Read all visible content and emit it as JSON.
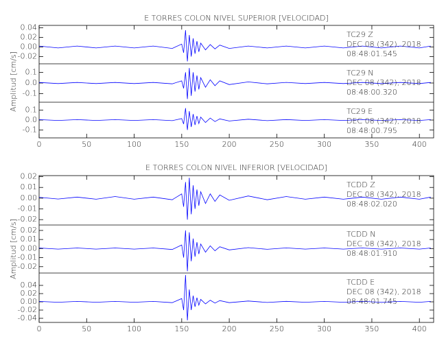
{
  "chart_data": [
    {
      "type": "line",
      "title": "E TORRES COLON NIVEL SUPERIOR [VELOCIDAD]",
      "y_label": "Amplitud [cm/s]",
      "color": "#0000ff",
      "xlim": [
        0,
        415
      ],
      "xticks": [
        0,
        50,
        100,
        150,
        200,
        250,
        300,
        350,
        400
      ],
      "x": [
        0,
        20,
        40,
        60,
        80,
        100,
        120,
        140,
        150,
        152,
        154,
        156,
        158,
        160,
        162,
        164,
        166,
        168,
        170,
        175,
        180,
        185,
        190,
        200,
        220,
        240,
        260,
        280,
        300,
        320,
        340,
        360,
        380,
        400,
        412
      ],
      "panels": [
        {
          "ylim": [
            -0.035,
            0.045
          ],
          "yticks": [
            {
              "value": 0.04,
              "label": "0.04"
            },
            {
              "value": 0.02,
              "label": "0.02"
            },
            {
              "value": 0,
              "label": "0.00"
            },
            {
              "value": -0.02,
              "label": "-0.02"
            }
          ],
          "labels": [
            "TC29   Z",
            "DEC 08 (342), 2018",
            "08:48:01.545"
          ],
          "values": [
            0.002,
            -0.002,
            0.002,
            -0.002,
            0.002,
            -0.002,
            0.002,
            -0.003,
            0.006,
            -0.012,
            0.035,
            -0.03,
            0.025,
            -0.02,
            0.018,
            -0.014,
            0.012,
            -0.01,
            0.008,
            -0.006,
            0.005,
            -0.004,
            0.004,
            -0.003,
            0.002,
            -0.002,
            0.002,
            -0.002,
            0.002,
            -0.002,
            0.002,
            -0.002,
            0.002,
            -0.002,
            0.002
          ]
        },
        {
          "ylim": [
            -0.18,
            0.18
          ],
          "yticks": [
            {
              "value": 0.1,
              "label": "0.1"
            },
            {
              "value": 0,
              "label": "0.0"
            },
            {
              "value": -0.1,
              "label": "-0.1"
            }
          ],
          "labels": [
            "TC29   N",
            "DEC 08 (342), 2018",
            "08:48:00.320"
          ],
          "values": [
            0.005,
            -0.005,
            0.005,
            -0.005,
            0.005,
            -0.005,
            0.005,
            -0.008,
            0.02,
            -0.05,
            0.1,
            -0.15,
            0.14,
            -0.12,
            0.1,
            -0.08,
            0.07,
            -0.06,
            0.05,
            -0.04,
            0.03,
            -0.025,
            0.02,
            -0.015,
            0.01,
            -0.008,
            0.006,
            -0.005,
            0.005,
            -0.005,
            0.005,
            -0.005,
            0.005,
            -0.005,
            0.005
          ]
        },
        {
          "ylim": [
            -0.18,
            0.18
          ],
          "yticks": [
            {
              "value": 0.1,
              "label": "0.1"
            },
            {
              "value": 0,
              "label": "0.0"
            },
            {
              "value": -0.1,
              "label": "-0.1"
            }
          ],
          "labels": [
            "TC29   E",
            "DEC 08 (342), 2018",
            "08:48:00.795"
          ],
          "values": [
            0.004,
            -0.004,
            0.004,
            -0.004,
            0.004,
            -0.004,
            0.004,
            -0.006,
            0.015,
            -0.04,
            0.12,
            -0.1,
            0.09,
            -0.07,
            0.06,
            -0.05,
            0.04,
            -0.035,
            0.03,
            -0.025,
            0.02,
            -0.015,
            0.012,
            -0.01,
            0.008,
            -0.006,
            0.005,
            -0.004,
            0.004,
            -0.004,
            0.004,
            -0.004,
            0.004,
            -0.004,
            0.004
          ]
        }
      ]
    },
    {
      "type": "line",
      "title": "E TORRES COLON NIVEL INFERIOR [VELOCIDAD]",
      "y_label": "Amplitud [cm/s]",
      "color": "#0000ff",
      "xlim": [
        0,
        415
      ],
      "xticks": [
        0,
        50,
        100,
        150,
        200,
        250,
        300,
        350,
        400
      ],
      "x": [
        0,
        20,
        40,
        60,
        80,
        100,
        120,
        140,
        150,
        152,
        154,
        156,
        158,
        160,
        162,
        164,
        166,
        168,
        170,
        175,
        180,
        185,
        190,
        200,
        220,
        240,
        260,
        280,
        300,
        320,
        340,
        360,
        380,
        400,
        412
      ],
      "panels": [
        {
          "ylim": [
            -0.025,
            0.021
          ],
          "yticks": [
            {
              "value": 0.02,
              "label": "0.02"
            },
            {
              "value": 0.01,
              "label": "0.01"
            },
            {
              "value": 0,
              "label": "0.00"
            },
            {
              "value": -0.01,
              "label": "-0.01"
            },
            {
              "value": -0.02,
              "label": "-0.02"
            }
          ],
          "labels": [
            "TCDD   Z",
            "DEC 08 (342), 2018",
            "08:48:02.020"
          ],
          "values": [
            0.0008,
            -0.0008,
            0.001,
            -0.001,
            0.0015,
            -0.001,
            0.001,
            -0.0015,
            0.004,
            -0.008,
            0.015,
            -0.02,
            0.019,
            -0.015,
            0.012,
            -0.01,
            0.008,
            -0.007,
            0.006,
            -0.005,
            0.004,
            -0.003,
            0.003,
            -0.002,
            0.002,
            -0.0015,
            0.0015,
            -0.001,
            0.001,
            -0.001,
            0.001,
            -0.001,
            0.001,
            -0.001,
            0.001
          ]
        },
        {
          "ylim": [
            -0.027,
            0.026
          ],
          "yticks": [
            {
              "value": 0.02,
              "label": "0.02"
            },
            {
              "value": 0.01,
              "label": "0.01"
            },
            {
              "value": 0,
              "label": "0.00"
            },
            {
              "value": -0.01,
              "label": "-0.01"
            },
            {
              "value": -0.02,
              "label": "-0.02"
            }
          ],
          "labels": [
            "TCDD   N",
            "DEC 08 (342), 2018",
            "08:48:01.910"
          ],
          "values": [
            0.0006,
            -0.0006,
            0.0006,
            -0.0006,
            0.0006,
            -0.0006,
            0.0006,
            -0.001,
            0.004,
            -0.01,
            0.02,
            -0.025,
            0.018,
            -0.014,
            0.011,
            -0.009,
            0.007,
            -0.006,
            0.005,
            -0.004,
            0.003,
            -0.0025,
            0.002,
            -0.0015,
            0.001,
            -0.0008,
            0.0007,
            -0.0006,
            0.0006,
            -0.0006,
            0.0006,
            -0.0006,
            0.0006,
            -0.0006,
            0.0006
          ]
        },
        {
          "ylim": [
            -0.05,
            0.07
          ],
          "yticks": [
            {
              "value": 0.04,
              "label": "0.04"
            },
            {
              "value": 0.02,
              "label": "0.02"
            },
            {
              "value": 0,
              "label": "0.00"
            },
            {
              "value": -0.02,
              "label": "-0.02"
            },
            {
              "value": -0.04,
              "label": "-0.04"
            }
          ],
          "labels": [
            "TCDD   E",
            "DEC 08 (342), 2018",
            "08:48:01.745"
          ],
          "values": [
            0.001,
            -0.001,
            0.001,
            -0.001,
            0.001,
            -0.001,
            0.001,
            -0.002,
            0.008,
            -0.02,
            0.065,
            -0.045,
            0.03,
            -0.02,
            0.015,
            -0.012,
            0.01,
            -0.008,
            0.006,
            -0.005,
            0.004,
            -0.003,
            0.003,
            -0.002,
            0.002,
            -0.0015,
            0.0012,
            -0.001,
            0.001,
            -0.001,
            0.001,
            -0.001,
            0.001,
            -0.001,
            0.001
          ]
        }
      ]
    }
  ]
}
